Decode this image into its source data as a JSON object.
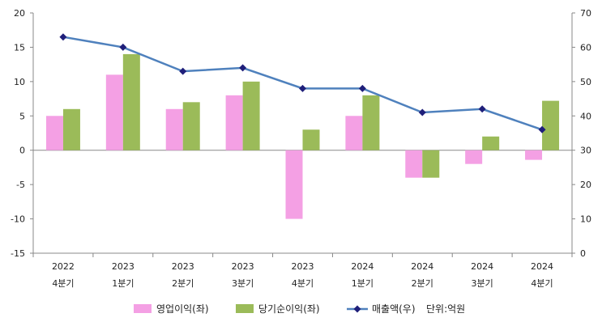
{
  "chart_data": {
    "type": "bar",
    "categories": [
      [
        "2022",
        "4분기"
      ],
      [
        "2023",
        "1분기"
      ],
      [
        "2023",
        "2분기"
      ],
      [
        "2023",
        "3분기"
      ],
      [
        "2023",
        "4분기"
      ],
      [
        "2024",
        "1분기"
      ],
      [
        "2024",
        "2분기"
      ],
      [
        "2024",
        "3분기"
      ],
      [
        "2024",
        "4분기"
      ]
    ],
    "series": [
      {
        "name": "영업이익(좌)",
        "type": "bar",
        "axis": "left",
        "color": "#f4a0e4",
        "values": [
          5,
          11,
          6,
          8,
          -10,
          5,
          -4,
          -2,
          -1.4
        ]
      },
      {
        "name": "당기순이익(좌)",
        "type": "bar",
        "axis": "left",
        "color": "#9bbb59",
        "values": [
          6,
          14,
          7,
          10,
          3,
          8,
          -4,
          2,
          7.2
        ]
      },
      {
        "name": "매출액(우)",
        "type": "line",
        "axis": "right",
        "color": "#4f81bd",
        "marker_color": "#1f1f7a",
        "values": [
          63,
          60,
          53,
          54,
          48,
          48,
          41,
          42,
          36
        ]
      }
    ],
    "left_axis": {
      "ylim": [
        -15,
        20
      ],
      "ticks": [
        -15,
        -10,
        -5,
        0,
        5,
        10,
        15,
        20
      ]
    },
    "right_axis": {
      "ylim": [
        0,
        70
      ],
      "ticks": [
        0,
        10,
        20,
        30,
        40,
        50,
        60,
        70
      ]
    },
    "legend": {
      "position": "bottom",
      "unit_note": "단위:억원"
    },
    "grid": false
  }
}
